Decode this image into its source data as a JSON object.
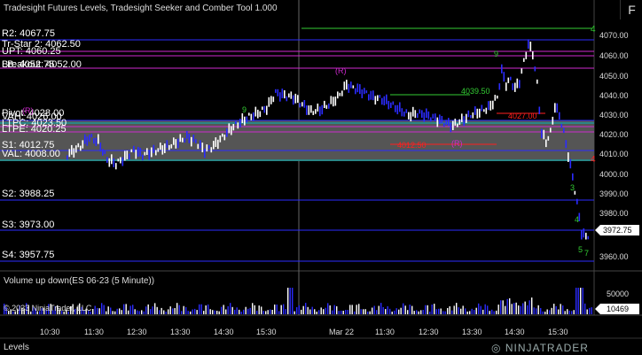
{
  "title": "Tradesight Futures Levels, Tradesight Seeker and Comber Tool 1.000",
  "menu_button": "F",
  "tab_label": "Levels",
  "volume_panel_title": "Volume up down(ES 06-23 (5 Minute))",
  "copyright": "© 2023 NinjaTrader, LLC",
  "logo_text": "NINJATRADER",
  "price_axis": {
    "ticks": [
      "4070.00",
      "4060.00",
      "4050.00",
      "4040.00",
      "4030.00",
      "4020.00",
      "4010.00",
      "4000.00",
      "3990.00",
      "3980.00",
      "3970.00",
      "3960.00"
    ],
    "current_price": "3972.75"
  },
  "volume_axis": {
    "ticks": [
      "50000",
      "10469"
    ]
  },
  "time_axis": {
    "ticks": [
      "10:30",
      "11:30",
      "12:30",
      "13:30",
      "14:30",
      "15:30",
      "Mar 22",
      "11:30",
      "12:30",
      "13:30",
      "14:30",
      "15:30"
    ]
  },
  "levels": [
    {
      "label": "R2: 4067.75",
      "color": "#2b2bff"
    },
    {
      "label": "Tr-Star 2: 4062.50",
      "color": "#d02ad0"
    },
    {
      "label": "UPT: 4060.25",
      "color": "#d02ad0"
    },
    {
      "label": "LB: 4052.75",
      "color": "#d02ad0"
    },
    {
      "label": "Breakout: 4052.00",
      "color": "#d02ad0"
    },
    {
      "label": "Pivot: 4028.00",
      "color": "#2b2bff"
    },
    {
      "label": "VAH: 4026.00",
      "color": "#00b8b8"
    },
    {
      "label": "LTPC: 4023.50",
      "color": "#d02ad0"
    },
    {
      "label": "LTPE: 4020.25",
      "color": "#d02ad0"
    },
    {
      "label": "S1: 4012.75",
      "color": "#2b2bff"
    },
    {
      "label": "VAL: 4008.00",
      "color": "#00b8b8"
    },
    {
      "label": "S2: 3988.25",
      "color": "#2b2bff"
    },
    {
      "label": "S3: 3973.00",
      "color": "#2b2bff"
    },
    {
      "label": "S4: 3957.75",
      "color": "#2b2bff"
    }
  ],
  "annotations": [
    {
      "text": "4",
      "color": "#33cc33"
    },
    {
      "text": "(R)",
      "color": "#d02ad0"
    },
    {
      "text": "(R)",
      "color": "#d02ad0"
    },
    {
      "text": "(R)",
      "color": "#d02ad0"
    },
    {
      "text": "4039.50",
      "color": "#33cc33"
    },
    {
      "text": "4027.00",
      "color": "#ff2020"
    },
    {
      "text": "4012.50",
      "color": "#ff2020"
    },
    {
      "text": "4",
      "color": "#ff2020"
    },
    {
      "text": "9",
      "color": "#33cc33"
    },
    {
      "text": "9",
      "color": "#33cc33"
    },
    {
      "text": "3",
      "color": "#33cc33"
    },
    {
      "text": "4",
      "color": "#33cc33"
    },
    {
      "text": "5",
      "color": "#33cc33"
    },
    {
      "text": "7",
      "color": "#33cc33"
    }
  ],
  "colors": {
    "up_bar": "#ffffff",
    "down_bar": "#2b2bff",
    "value_area_fill": "#555555",
    "level_green": "#33cc33"
  }
}
